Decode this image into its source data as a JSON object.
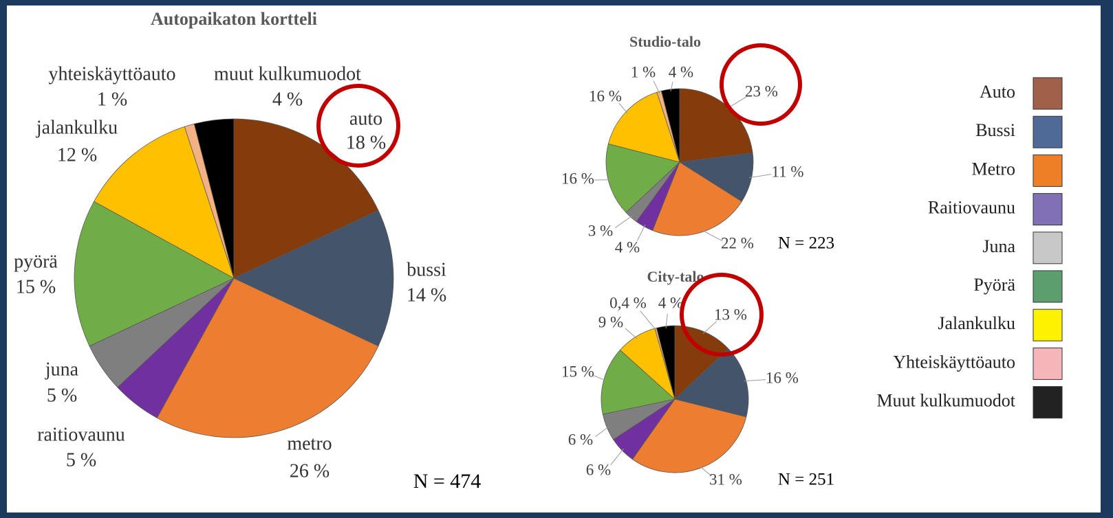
{
  "chart_data": [
    {
      "type": "pie",
      "title": "Autopaikaton kortteli",
      "categories": [
        "auto",
        "bussi",
        "metro",
        "raitiovaunu",
        "juna",
        "pyörä",
        "jalankulku",
        "yhteiskäyttöauto",
        "muut kulkumuodot"
      ],
      "values": [
        18,
        14,
        26,
        5,
        5,
        15,
        12,
        1,
        4
      ],
      "value_labels": [
        "18 %",
        "14 %",
        "26 %",
        "5 %",
        "5 %",
        "15 %",
        "12 %",
        "1 %",
        "4 %"
      ],
      "colors": [
        "#843c0c",
        "#44546a",
        "#ed7d31",
        "#7030a0",
        "#7f7f7f",
        "#70ad47",
        "#ffc000",
        "#f4b183",
        "#000000"
      ],
      "annotation": "N = 474"
    },
    {
      "type": "pie",
      "title": "Studio-talo",
      "values": [
        23,
        11,
        22,
        4,
        3,
        16,
        16,
        1,
        4
      ],
      "value_labels": [
        "23 %",
        "11 %",
        "22 %",
        "4 %",
        "3 %",
        "16 %",
        "16 %",
        "1 %",
        "4 %"
      ],
      "colors": [
        "#843c0c",
        "#44546a",
        "#ed7d31",
        "#7030a0",
        "#7f7f7f",
        "#70ad47",
        "#ffc000",
        "#f4b183",
        "#000000"
      ],
      "annotation": "N = 223"
    },
    {
      "type": "pie",
      "title": "City-talo",
      "values": [
        13,
        16,
        31,
        6,
        6,
        15,
        9,
        0.4,
        4
      ],
      "value_labels": [
        "13 %",
        "16 %",
        "31 %",
        "6 %",
        "6 %",
        "15 %",
        "9 %",
        "0,4 %",
        "4 %"
      ],
      "colors": [
        "#843c0c",
        "#44546a",
        "#ed7d31",
        "#7030a0",
        "#7f7f7f",
        "#70ad47",
        "#ffc000",
        "#f4b183",
        "#000000"
      ],
      "annotation": "N = 251"
    }
  ],
  "legend": {
    "items": [
      {
        "name": "Auto",
        "color": "#a0604a"
      },
      {
        "name": "Bussi",
        "color": "#4f6a96"
      },
      {
        "name": "Metro",
        "color": "#ef7f26"
      },
      {
        "name": "Raitiovaunu",
        "color": "#8170b5"
      },
      {
        "name": "Juna",
        "color": "#c8c8c8"
      },
      {
        "name": "Pyörä",
        "color": "#5c9e6e"
      },
      {
        "name": "Jalankulku",
        "color": "#fff200"
      },
      {
        "name": "Yhteiskäyttöauto",
        "color": "#f4b6b8"
      },
      {
        "name": "Muut kulkumuodot",
        "color": "#222222"
      }
    ]
  }
}
